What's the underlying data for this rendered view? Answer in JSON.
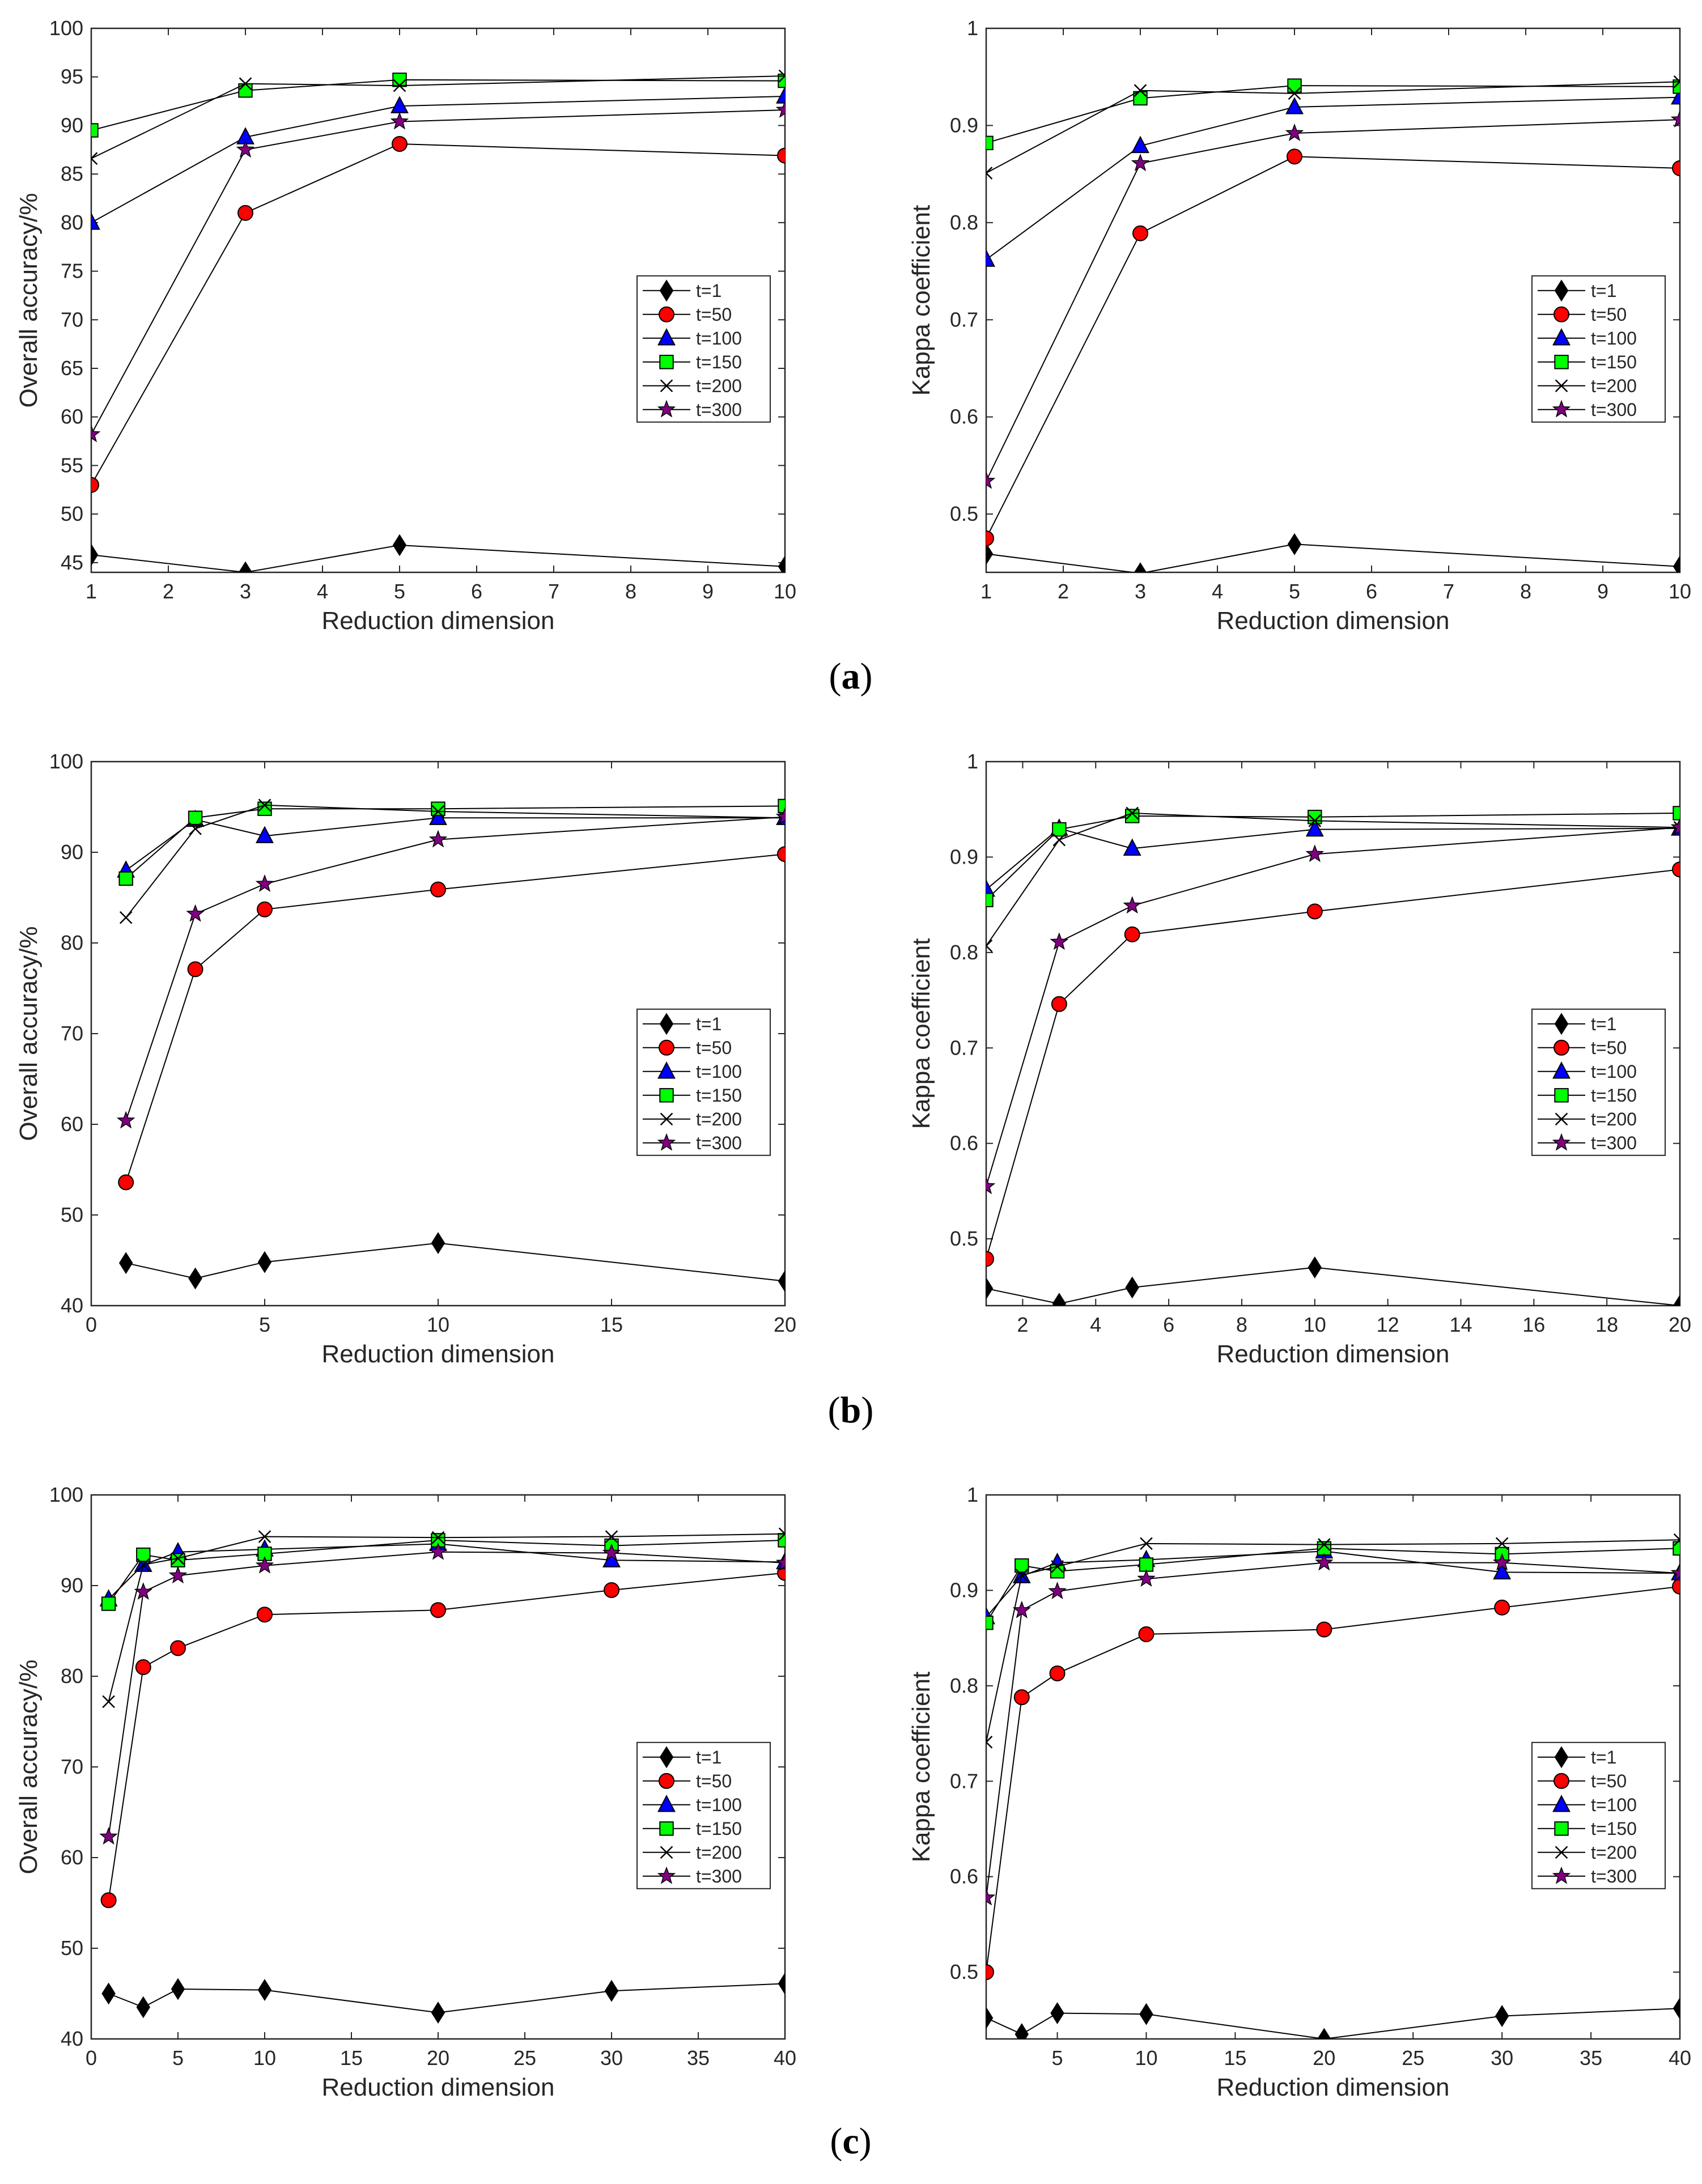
{
  "figure": {
    "captions": [
      {
        "open": "(",
        "letter": "a",
        "close": ")"
      },
      {
        "open": "(",
        "letter": "b",
        "close": ")"
      },
      {
        "open": "(",
        "letter": "c",
        "close": ")"
      }
    ]
  },
  "styles": {
    "t=1": {
      "marker": "diamond",
      "fill": "#000000",
      "stroke": "#000000"
    },
    "t=50": {
      "marker": "circle",
      "fill": "#ff0000",
      "stroke": "#000000"
    },
    "t=100": {
      "marker": "triangle",
      "fill": "#0000ff",
      "stroke": "#000000"
    },
    "t=150": {
      "marker": "square",
      "fill": "#00ff00",
      "stroke": "#000000"
    },
    "t=200": {
      "marker": "x",
      "fill": "none",
      "stroke": "#000000"
    },
    "t=300": {
      "marker": "star",
      "fill": "#800080",
      "stroke": "#000000"
    }
  },
  "chart_data": [
    {
      "id": "a-oa",
      "type": "line",
      "panel": "a",
      "xlabel": "Reduction dimension",
      "ylabel": "Overall accuracy/%",
      "xlim": [
        1,
        10
      ],
      "ylim": [
        44,
        100
      ],
      "xticks": [
        1,
        2,
        3,
        4,
        5,
        6,
        7,
        8,
        9,
        10
      ],
      "yticks": [
        45,
        50,
        55,
        60,
        65,
        70,
        75,
        80,
        85,
        90,
        95,
        100
      ],
      "tick_format": "int",
      "legend_position": "lower-right",
      "x": [
        1,
        3,
        5,
        10
      ],
      "series": [
        {
          "name": "t=1",
          "values": [
            45.8,
            44.0,
            46.8,
            44.6
          ]
        },
        {
          "name": "t=50",
          "values": [
            53.0,
            81.0,
            88.1,
            86.9
          ]
        },
        {
          "name": "t=100",
          "values": [
            80.0,
            88.8,
            92.0,
            93.0
          ]
        },
        {
          "name": "t=150",
          "values": [
            89.5,
            93.6,
            94.7,
            94.6
          ]
        },
        {
          "name": "t=200",
          "values": [
            86.6,
            94.3,
            94.1,
            95.1
          ]
        },
        {
          "name": "t=300",
          "values": [
            58.2,
            87.5,
            90.4,
            91.6
          ]
        }
      ]
    },
    {
      "id": "a-kappa",
      "type": "line",
      "panel": "a",
      "xlabel": "Reduction dimension",
      "ylabel": "Kappa coefficient",
      "xlim": [
        1,
        10
      ],
      "ylim": [
        0.44,
        1.0
      ],
      "xticks": [
        1,
        2,
        3,
        4,
        5,
        6,
        7,
        8,
        9,
        10
      ],
      "yticks": [
        0.5,
        0.6,
        0.7,
        0.8,
        0.9,
        1
      ],
      "tick_format": "dec1",
      "legend_position": "lower-right",
      "x": [
        1,
        3,
        5,
        10
      ],
      "series": [
        {
          "name": "t=1",
          "values": [
            0.459,
            0.439,
            0.469,
            0.446
          ]
        },
        {
          "name": "t=50",
          "values": [
            0.475,
            0.789,
            0.868,
            0.856
          ]
        },
        {
          "name": "t=100",
          "values": [
            0.762,
            0.879,
            0.919,
            0.929
          ]
        },
        {
          "name": "t=150",
          "values": [
            0.882,
            0.928,
            0.941,
            0.94
          ]
        },
        {
          "name": "t=200",
          "values": [
            0.851,
            0.936,
            0.933,
            0.945
          ]
        },
        {
          "name": "t=300",
          "values": [
            0.534,
            0.861,
            0.892,
            0.906
          ]
        }
      ]
    },
    {
      "id": "b-oa",
      "type": "line",
      "panel": "b",
      "xlabel": "Reduction dimension",
      "ylabel": "Overall accuracy/%",
      "xlim": [
        0,
        20
      ],
      "ylim": [
        40,
        100
      ],
      "xticks": [
        0,
        5,
        10,
        15,
        20
      ],
      "yticks": [
        40,
        50,
        60,
        70,
        80,
        90,
        100
      ],
      "tick_format": "int",
      "legend_position": "lower-right",
      "x": [
        1,
        3,
        5,
        10,
        20
      ],
      "series": [
        {
          "name": "t=1",
          "values": [
            44.7,
            43.0,
            44.8,
            46.9,
            42.7
          ]
        },
        {
          "name": "t=50",
          "values": [
            53.6,
            77.1,
            83.7,
            85.9,
            89.8
          ]
        },
        {
          "name": "t=100",
          "values": [
            88.0,
            93.6,
            91.8,
            93.8,
            93.8
          ]
        },
        {
          "name": "t=150",
          "values": [
            87.1,
            93.8,
            94.8,
            94.8,
            95.1
          ]
        },
        {
          "name": "t=200",
          "values": [
            82.8,
            92.6,
            95.2,
            94.5,
            93.8
          ]
        },
        {
          "name": "t=300",
          "values": [
            60.4,
            83.2,
            86.5,
            91.4,
            93.9
          ]
        }
      ]
    },
    {
      "id": "b-kappa",
      "type": "line",
      "panel": "b",
      "xlabel": "Reduction dimension",
      "ylabel": "Kappa coefficient",
      "xlim": [
        1,
        20
      ],
      "ylim": [
        0.43,
        1.0
      ],
      "xticks": [
        2,
        4,
        6,
        8,
        10,
        12,
        14,
        16,
        18,
        20
      ],
      "yticks": [
        0.5,
        0.6,
        0.7,
        0.8,
        0.9,
        1
      ],
      "tick_format": "dec1",
      "legend_position": "lower-right",
      "x": [
        1,
        3,
        5,
        10,
        20
      ],
      "series": [
        {
          "name": "t=1",
          "values": [
            0.448,
            0.432,
            0.449,
            0.47,
            0.43
          ]
        },
        {
          "name": "t=50",
          "values": [
            0.479,
            0.746,
            0.819,
            0.843,
            0.887
          ]
        },
        {
          "name": "t=100",
          "values": [
            0.866,
            0.93,
            0.909,
            0.929,
            0.93
          ]
        },
        {
          "name": "t=150",
          "values": [
            0.855,
            0.929,
            0.943,
            0.942,
            0.946
          ]
        },
        {
          "name": "t=200",
          "values": [
            0.807,
            0.918,
            0.946,
            0.938,
            0.931
          ]
        },
        {
          "name": "t=300",
          "values": [
            0.555,
            0.811,
            0.849,
            0.903,
            0.931
          ]
        }
      ]
    },
    {
      "id": "c-oa",
      "type": "line",
      "panel": "c",
      "xlabel": "Reduction dimension",
      "ylabel": "Overall accuracy/%",
      "xlim": [
        0,
        40
      ],
      "ylim": [
        40,
        100
      ],
      "xticks": [
        0,
        5,
        10,
        15,
        20,
        25,
        30,
        35,
        40
      ],
      "yticks": [
        40,
        50,
        60,
        70,
        80,
        90,
        100
      ],
      "tick_format": "int",
      "legend_position": "lower-right",
      "x": [
        1,
        3,
        5,
        10,
        20,
        30,
        40
      ],
      "series": [
        {
          "name": "t=1",
          "values": [
            45.0,
            43.5,
            45.5,
            45.4,
            42.9,
            45.3,
            46.1
          ]
        },
        {
          "name": "t=50",
          "values": [
            55.3,
            81.0,
            83.1,
            86.8,
            87.3,
            89.5,
            91.4
          ]
        },
        {
          "name": "t=100",
          "values": [
            88.5,
            92.3,
            93.7,
            94.0,
            94.6,
            92.8,
            92.6
          ]
        },
        {
          "name": "t=150",
          "values": [
            88.0,
            93.4,
            92.8,
            93.5,
            95.0,
            94.4,
            95.0
          ]
        },
        {
          "name": "t=200",
          "values": [
            77.2,
            92.3,
            93.0,
            95.4,
            95.3,
            95.4,
            95.7
          ]
        },
        {
          "name": "t=300",
          "values": [
            62.3,
            89.3,
            91.1,
            92.2,
            93.7,
            93.6,
            92.5
          ]
        }
      ]
    },
    {
      "id": "c-kappa",
      "type": "line",
      "panel": "c",
      "xlabel": "Reduction dimension",
      "ylabel": "Kappa coefficient",
      "xlim": [
        1,
        40
      ],
      "ylim": [
        0.43,
        1.0
      ],
      "xticks": [
        5,
        10,
        15,
        20,
        25,
        30,
        35,
        40
      ],
      "yticks": [
        0.5,
        0.6,
        0.7,
        0.8,
        0.9,
        1
      ],
      "tick_format": "dec1",
      "legend_position": "lower-right",
      "x": [
        1,
        3,
        5,
        10,
        20,
        30,
        40
      ],
      "series": [
        {
          "name": "t=1",
          "values": [
            0.452,
            0.435,
            0.457,
            0.456,
            0.43,
            0.454,
            0.462
          ]
        },
        {
          "name": "t=50",
          "values": [
            0.5,
            0.788,
            0.813,
            0.854,
            0.859,
            0.882,
            0.904
          ]
        },
        {
          "name": "t=100",
          "values": [
            0.872,
            0.915,
            0.929,
            0.932,
            0.941,
            0.919,
            0.918
          ]
        },
        {
          "name": "t=150",
          "values": [
            0.866,
            0.926,
            0.92,
            0.927,
            0.944,
            0.938,
            0.944
          ]
        },
        {
          "name": "t=200",
          "values": [
            0.741,
            0.916,
            0.925,
            0.949,
            0.948,
            0.949,
            0.953
          ]
        },
        {
          "name": "t=300",
          "values": [
            0.578,
            0.879,
            0.899,
            0.912,
            0.929,
            0.929,
            0.918
          ]
        }
      ]
    }
  ]
}
